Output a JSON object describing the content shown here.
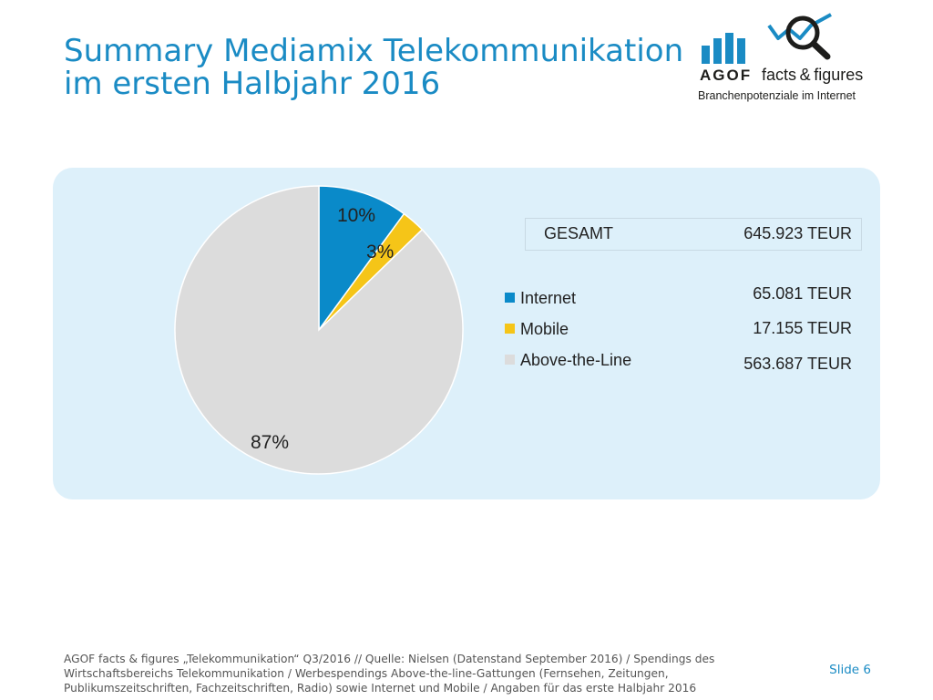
{
  "title": {
    "line1": "Summary Mediamix Telekommunikation",
    "line2": "im ersten Halbjahr 2016"
  },
  "logo": {
    "brand": "AGOF",
    "product": "facts & figures",
    "tagline": "Branchenpotenziale im Internet",
    "icon": "bar-chart-magnifier-icon"
  },
  "total": {
    "label": "GESAMT",
    "value": "645.923 TEUR"
  },
  "legend_amounts": [
    "65.081 TEUR",
    "17.155 TEUR",
    "563.687 TEUR"
  ],
  "colors": {
    "internet": "#0a8ac9",
    "mobile": "#f5c518",
    "above_the_line": "#dcdcdc",
    "accent": "#1a8bc4",
    "panel": "#ddf0fa"
  },
  "chart_data": {
    "type": "pie",
    "categories": [
      "Internet",
      "Mobile",
      "Above-the-Line"
    ],
    "values": [
      65081,
      17155,
      563687
    ],
    "percent_labels": [
      "10%",
      "3%",
      "87%"
    ],
    "colors": [
      "#0a8ac9",
      "#f5c518",
      "#dcdcdc"
    ],
    "legend_position": "right"
  },
  "footer": {
    "source": "AGOF facts & figures „Telekommunikation“ Q3/2016 // Quelle: Nielsen (Datenstand September 2016) / Spendings des Wirtschaftsbereichs Telekommunikation / Werbespendings Above-the-line-Gattungen (Fernsehen, Zeitungen, Publikumszeitschriften, Fachzeitschriften, Radio) sowie Internet und Mobile / Angaben für das erste Halbjahr 2016",
    "slide": "Slide 6"
  }
}
